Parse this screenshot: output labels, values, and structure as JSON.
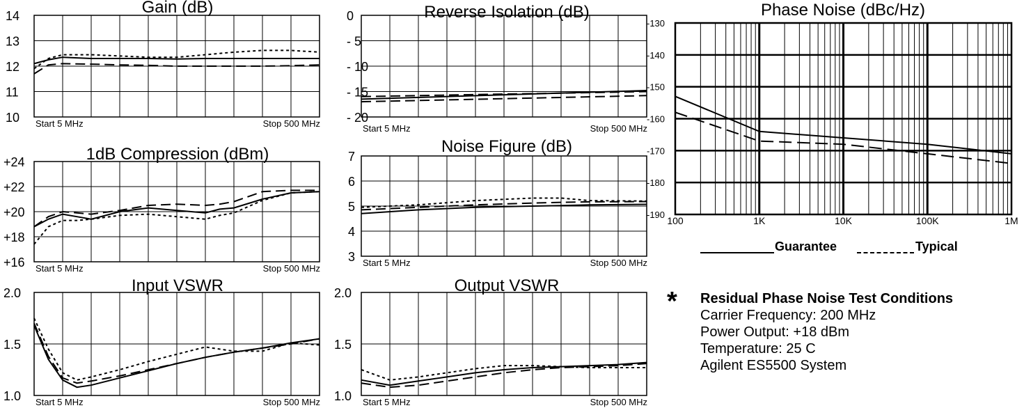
{
  "chart_data": [
    {
      "type": "line",
      "title": "Gain (dB)",
      "ylim": [
        10,
        14
      ],
      "y_tick_labels": [
        "14",
        "13",
        "12",
        "11",
        "10"
      ],
      "x_start_label": "Start  5  MHz",
      "x_stop_label": "Stop  500  MHz",
      "x": [
        0,
        0.5,
        1,
        2,
        3,
        4,
        5,
        6,
        7,
        8,
        9,
        10
      ],
      "series": [
        {
          "style": "solid",
          "values": [
            12.1,
            12.25,
            12.35,
            12.3,
            12.3,
            12.3,
            12.28,
            12.3,
            12.3,
            12.3,
            12.3,
            12.3
          ]
        },
        {
          "style": "dotted",
          "values": [
            11.9,
            12.3,
            12.45,
            12.45,
            12.4,
            12.35,
            12.35,
            12.45,
            12.55,
            12.62,
            12.62,
            12.55
          ]
        },
        {
          "style": "dashed",
          "values": [
            11.7,
            12.05,
            12.1,
            12.08,
            12.05,
            12.03,
            12.0,
            12.0,
            12.0,
            12.0,
            12.02,
            12.05
          ]
        }
      ]
    },
    {
      "type": "line",
      "title": "Reverse Isolation (dB)",
      "ylim": [
        -20,
        0
      ],
      "y_tick_labels": [
        "0",
        "- 5",
        "- 10",
        "- 15",
        "- 20"
      ],
      "x_start_label": "Start  5  MHz",
      "x_stop_label": "Stop  500  MHz",
      "x": [
        0,
        10
      ],
      "series": [
        {
          "style": "solid",
          "values": [
            -16.5,
            -14.8
          ]
        },
        {
          "style": "dashed",
          "values": [
            -16.0,
            -15.0
          ]
        },
        {
          "style": "dashed",
          "values": [
            -17.0,
            -15.8
          ]
        }
      ]
    },
    {
      "type": "line",
      "title": "1dB Compression (dBm)",
      "ylim": [
        16,
        24
      ],
      "y_tick_labels": [
        "+24",
        "+22",
        "+20",
        "+18",
        "+16"
      ],
      "x_start_label": "Start  5  MHz",
      "x_stop_label": "Stop  500  MHz",
      "x": [
        0,
        0.5,
        1,
        1.5,
        2,
        3,
        4,
        5,
        6,
        6.5,
        7,
        8,
        9,
        10
      ],
      "series": [
        {
          "style": "solid",
          "values": [
            18.8,
            19.4,
            19.8,
            19.6,
            19.4,
            20.0,
            20.3,
            20.1,
            19.9,
            20.2,
            20.3,
            21.0,
            21.5,
            21.6
          ]
        },
        {
          "style": "dashed",
          "values": [
            18.8,
            19.6,
            20.0,
            19.9,
            19.8,
            20.1,
            20.5,
            20.6,
            20.5,
            20.6,
            20.8,
            21.6,
            21.7,
            21.7
          ]
        },
        {
          "style": "dotted",
          "values": [
            17.4,
            18.8,
            19.3,
            19.3,
            19.4,
            19.7,
            19.8,
            19.6,
            19.4,
            19.7,
            19.9,
            20.9,
            21.5,
            21.6
          ]
        }
      ]
    },
    {
      "type": "line",
      "title": "Noise Figure (dB)",
      "ylim": [
        3,
        7
      ],
      "y_tick_labels": [
        "7",
        "6",
        "5",
        "4",
        "3"
      ],
      "x_start_label": "Start  5  MHz",
      "x_stop_label": "Stop  500  MHz",
      "x": [
        0,
        2,
        4,
        6,
        7,
        8,
        10
      ],
      "series": [
        {
          "style": "solid",
          "values": [
            4.7,
            4.85,
            4.95,
            5.0,
            5.02,
            5.05,
            5.07
          ]
        },
        {
          "style": "dashed",
          "values": [
            4.85,
            4.95,
            5.05,
            5.12,
            5.15,
            5.17,
            5.18
          ]
        },
        {
          "style": "dotted",
          "values": [
            4.95,
            5.05,
            5.22,
            5.32,
            5.32,
            5.22,
            5.2
          ]
        }
      ]
    },
    {
      "type": "line",
      "title": "Input VSWR",
      "ylim": [
        1.0,
        2.0
      ],
      "y_tick_labels": [
        "2.0",
        "1.5",
        "1.0"
      ],
      "x_start_label": "Start  5  MHz",
      "x_stop_label": "Stop  500  MHz",
      "x": [
        0,
        0.5,
        1,
        1.5,
        2,
        3,
        4,
        5,
        6,
        7,
        8,
        9,
        10
      ],
      "series": [
        {
          "style": "solid",
          "values": [
            1.68,
            1.35,
            1.15,
            1.08,
            1.1,
            1.17,
            1.24,
            1.31,
            1.37,
            1.42,
            1.46,
            1.51,
            1.55
          ]
        },
        {
          "style": "dashed",
          "values": [
            1.7,
            1.38,
            1.17,
            1.12,
            1.14,
            1.19,
            1.25,
            1.31,
            1.37,
            1.42,
            1.46,
            1.5,
            1.55
          ]
        },
        {
          "style": "dotted",
          "values": [
            1.75,
            1.45,
            1.22,
            1.15,
            1.18,
            1.25,
            1.33,
            1.4,
            1.47,
            1.43,
            1.43,
            1.51,
            1.49
          ]
        }
      ]
    },
    {
      "type": "line",
      "title": "Output VSWR",
      "ylim": [
        1.0,
        2.0
      ],
      "y_tick_labels": [
        "2.0",
        "1.5",
        "1.0"
      ],
      "x_start_label": "Start  5  MHz",
      "x_stop_label": "Stop  500  MHz",
      "x": [
        0,
        1,
        2,
        3,
        4,
        5,
        6,
        7,
        8,
        9,
        10
      ],
      "series": [
        {
          "style": "solid",
          "values": [
            1.15,
            1.1,
            1.14,
            1.18,
            1.22,
            1.25,
            1.27,
            1.28,
            1.29,
            1.3,
            1.32
          ]
        },
        {
          "style": "dashed",
          "values": [
            1.12,
            1.08,
            1.1,
            1.14,
            1.18,
            1.22,
            1.25,
            1.27,
            1.28,
            1.29,
            1.31
          ]
        },
        {
          "style": "dotted",
          "values": [
            1.25,
            1.15,
            1.18,
            1.22,
            1.26,
            1.29,
            1.29,
            1.28,
            1.27,
            1.27,
            1.27
          ]
        }
      ]
    },
    {
      "type": "line",
      "title": "Phase Noise (dBc/Hz)",
      "ylim": [
        -190,
        -130
      ],
      "y_tick_labels": [
        "-130",
        "-140",
        "-150",
        "-160",
        "-170",
        "-180",
        "-190"
      ],
      "x_scale": "log",
      "x_tick_labels": [
        "100",
        "1K",
        "10K",
        "100K",
        "1M"
      ],
      "x": [
        100,
        1000,
        10000,
        100000,
        1000000
      ],
      "series": [
        {
          "name": "Guarantee",
          "style": "solid",
          "values": [
            -153,
            -164,
            -166,
            -168,
            -171
          ]
        },
        {
          "name": "Typical",
          "style": "dashed",
          "values": [
            -158,
            -167,
            -168,
            -171,
            -174
          ]
        }
      ]
    }
  ],
  "legend": {
    "guarantee": "Guarantee",
    "typical": "Typical"
  },
  "notes": {
    "star": "*",
    "title": "Residual Phase Noise Test Conditions",
    "lines": [
      "Carrier Frequency: 200 MHz",
      "Power Output: +18 dBm",
      "Temperature: 25 C",
      "Agilent ES5500 System"
    ]
  }
}
